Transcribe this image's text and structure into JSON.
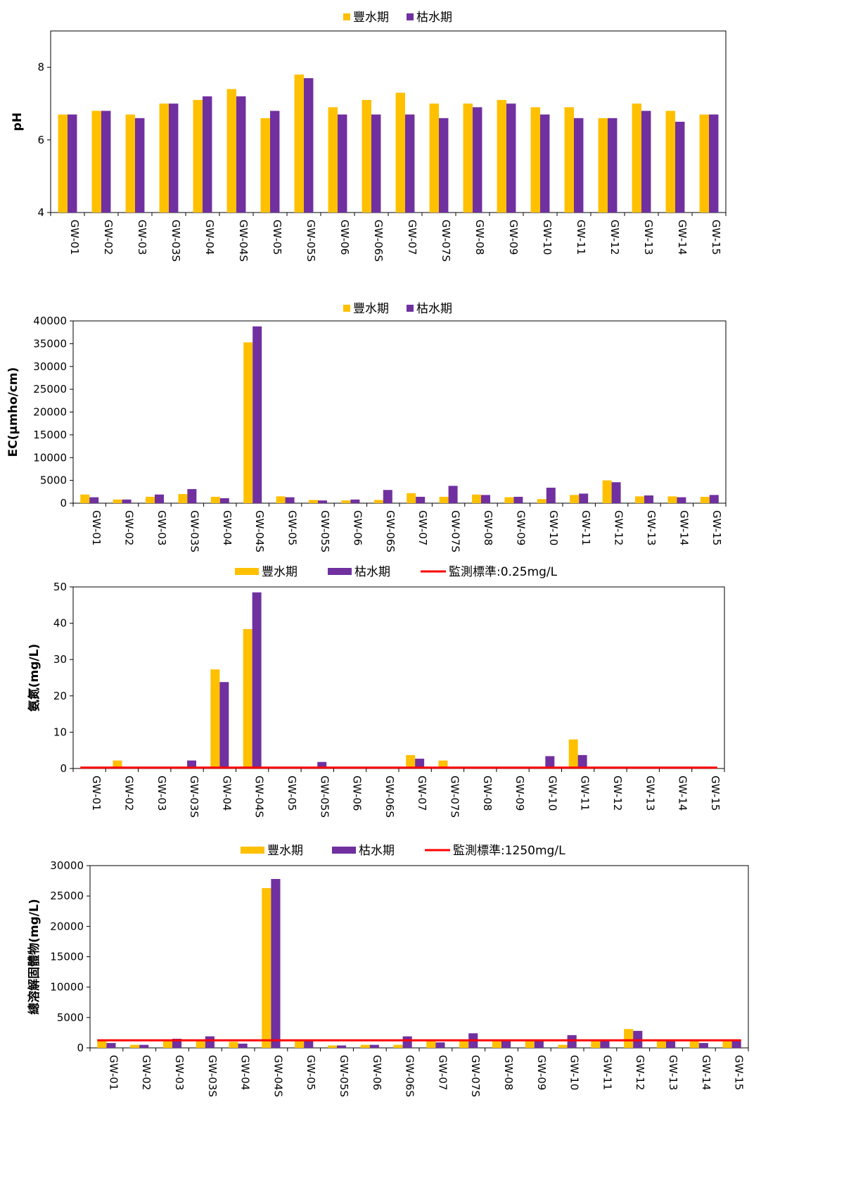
{
  "colors": {
    "wet": "#FFC000",
    "dry": "#7030A0",
    "standard": "#FF0000"
  },
  "wells": [
    "GW-01",
    "GW-02",
    "GW-03",
    "GW-03S",
    "GW-04",
    "GW-04S",
    "GW-05",
    "GW-05S",
    "GW-06",
    "GW-06S",
    "GW-07",
    "GW-07S",
    "GW-08",
    "GW-09",
    "GW-10",
    "GW-11",
    "GW-12",
    "GW-13",
    "GW-14",
    "GW-15"
  ],
  "chart_data": [
    {
      "type": "bar",
      "title": "",
      "ylabel": "pH",
      "ylim": [
        4,
        9
      ],
      "yticks": [
        4,
        6,
        8
      ],
      "legend": {
        "placement": "top",
        "entries": [
          "豐水期",
          "枯水期"
        ]
      },
      "grid": false,
      "categories": [
        "GW-01",
        "GW-02",
        "GW-03",
        "GW-03S",
        "GW-04",
        "GW-04S",
        "GW-05",
        "GW-05S",
        "GW-06",
        "GW-06S",
        "GW-07",
        "GW-07S",
        "GW-08",
        "GW-09",
        "GW-10",
        "GW-11",
        "GW-12",
        "GW-13",
        "GW-14",
        "GW-15"
      ],
      "series": [
        {
          "name": "豐水期",
          "values": [
            6.7,
            6.8,
            6.7,
            7.0,
            7.1,
            7.4,
            6.6,
            7.8,
            6.9,
            7.1,
            7.3,
            7.0,
            7.0,
            7.1,
            6.9,
            6.9,
            6.6,
            7.0,
            6.8,
            6.7
          ]
        },
        {
          "name": "枯水期",
          "values": [
            6.7,
            6.8,
            6.6,
            7.0,
            7.2,
            7.2,
            6.8,
            7.7,
            6.7,
            6.7,
            6.7,
            6.6,
            6.9,
            7.0,
            6.7,
            6.6,
            6.6,
            6.8,
            6.5,
            6.7
          ]
        }
      ]
    },
    {
      "type": "bar",
      "title": "",
      "ylabel": "EC(μmho/cm)",
      "ylim": [
        0,
        40000
      ],
      "yticks": [
        0,
        5000,
        10000,
        15000,
        20000,
        25000,
        30000,
        35000,
        40000
      ],
      "legend": {
        "placement": "top",
        "entries": [
          "豐水期",
          "枯水期"
        ]
      },
      "grid": false,
      "categories": [
        "GW-01",
        "GW-02",
        "GW-03",
        "GW-03S",
        "GW-04",
        "GW-04S",
        "GW-05",
        "GW-05S",
        "GW-06",
        "GW-06S",
        "GW-07",
        "GW-07S",
        "GW-08",
        "GW-09",
        "GW-10",
        "GW-11",
        "GW-12",
        "GW-13",
        "GW-14",
        "GW-15"
      ],
      "series": [
        {
          "name": "豐水期",
          "values": [
            1900,
            800,
            1400,
            2000,
            1400,
            35300,
            1500,
            700,
            600,
            700,
            2200,
            1400,
            1900,
            1300,
            900,
            1800,
            5000,
            1500,
            1500,
            1400
          ]
        },
        {
          "name": "枯水期",
          "values": [
            1300,
            800,
            1900,
            3100,
            1100,
            38800,
            1300,
            600,
            800,
            2900,
            1400,
            3800,
            1800,
            1400,
            3400,
            2100,
            4600,
            1700,
            1300,
            1800
          ]
        }
      ]
    },
    {
      "type": "bar",
      "title": "",
      "ylabel": "氨氮(mg/L)",
      "ylim": [
        0,
        50
      ],
      "yticks": [
        0,
        10,
        20,
        30,
        40,
        50
      ],
      "legend": {
        "placement": "top",
        "entries": [
          "豐水期",
          "枯水期",
          "監測標準:0.25mg/L"
        ]
      },
      "grid": false,
      "standard": {
        "name": "監測標準:0.25mg/L",
        "value": 0.25
      },
      "categories": [
        "GW-01",
        "GW-02",
        "GW-03",
        "GW-03S",
        "GW-04",
        "GW-04S",
        "GW-05",
        "GW-05S",
        "GW-06",
        "GW-06S",
        "GW-07",
        "GW-07S",
        "GW-08",
        "GW-09",
        "GW-10",
        "GW-11",
        "GW-12",
        "GW-13",
        "GW-14",
        "GW-15"
      ],
      "series": [
        {
          "name": "豐水期",
          "values": [
            0.1,
            2.2,
            0.1,
            0.5,
            27.3,
            38.4,
            0.1,
            0.5,
            0.1,
            0.1,
            3.7,
            2.2,
            0.1,
            0.1,
            0.1,
            8.0,
            0.1,
            0.1,
            0.1,
            0.1
          ]
        },
        {
          "name": "枯水期",
          "values": [
            0.1,
            0.1,
            0.1,
            2.2,
            23.8,
            48.5,
            0.1,
            1.8,
            0.1,
            0.1,
            2.7,
            0.1,
            0.1,
            0.1,
            3.4,
            3.7,
            0.1,
            0.1,
            0.1,
            0.1
          ]
        }
      ]
    },
    {
      "type": "bar",
      "title": "",
      "ylabel": "總溶解固體物(mg/L)",
      "ylim": [
        0,
        30000
      ],
      "yticks": [
        0,
        5000,
        10000,
        15000,
        20000,
        25000,
        30000
      ],
      "legend": {
        "placement": "top",
        "entries": [
          "豐水期",
          "枯水期",
          "監測標準:1250mg/L"
        ]
      },
      "grid": false,
      "standard": {
        "name": "監測標準:1250mg/L",
        "value": 1250
      },
      "categories": [
        "GW-01",
        "GW-02",
        "GW-03",
        "GW-03S",
        "GW-04",
        "GW-04S",
        "GW-05",
        "GW-05S",
        "GW-06",
        "GW-06S",
        "GW-07",
        "GW-07S",
        "GW-08",
        "GW-09",
        "GW-10",
        "GW-11",
        "GW-12",
        "GW-13",
        "GW-14",
        "GW-15"
      ],
      "series": [
        {
          "name": "豐水期",
          "values": [
            1300,
            500,
            1200,
            1300,
            1000,
            26300,
            1200,
            400,
            500,
            500,
            1200,
            1200,
            1200,
            1100,
            500,
            1300,
            3100,
            1200,
            1200,
            1200
          ]
        },
        {
          "name": "枯水期",
          "values": [
            800,
            500,
            1500,
            1900,
            700,
            27800,
            1100,
            400,
            500,
            1900,
            900,
            2400,
            1100,
            1200,
            2100,
            1200,
            2800,
            1200,
            800,
            1100
          ]
        }
      ]
    }
  ]
}
